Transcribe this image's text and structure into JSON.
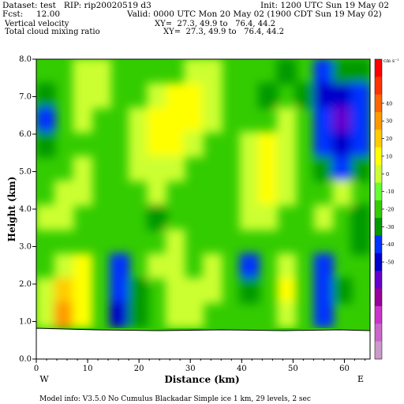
{
  "header": {
    "dataset": "Dataset: test   RIP: rip20020519 d3",
    "init": "Init: 1200 UTC Sun 19 May 02",
    "fcst": "Fcst:     12.00",
    "valid": "Valid: 0000 UTC Mon 20 May 02 (1900 CDT Sun 19 May 02)",
    "field1": "Vertical velocity",
    "xy1": "XY=  27.3, 49.9 to   76.4, 44.2",
    "field2": "Total cloud mixing ratio",
    "xy2": "XY=  27.3, 49.9 to   76.4, 44.2"
  },
  "footer": {
    "model_info": "Model info: V3.5.0 No Cumulus Blackadar  Simple ice     1 km,  29 levels,     2 sec"
  },
  "chart_data": {
    "type": "heatmap",
    "title": "Vertical velocity",
    "overlay": "Total cloud mixing ratio",
    "xlabel": "Distance (km)",
    "ylabel": "Height (km)",
    "xlim": [
      0,
      65
    ],
    "ylim": [
      0,
      8
    ],
    "x_ticks": [
      "0",
      "10",
      "20",
      "30",
      "40",
      "50",
      "60"
    ],
    "y_ticks": [
      "0.0",
      "1.0",
      "2.0",
      "3.0",
      "4.0",
      "5.0",
      "6.0",
      "7.0",
      "8.0"
    ],
    "x_end_labels": {
      "left": "W",
      "right": "E"
    },
    "colorbar": {
      "unit": "cm s⁻¹",
      "tick_labels": [
        "40",
        "30",
        "20",
        "10",
        "0",
        "-10",
        "-20",
        "-30",
        "-40",
        "-50"
      ],
      "colors": [
        "#ff0000",
        "#ff3300",
        "#ff6600",
        "#ff9900",
        "#ffcc00",
        "#ffff00",
        "#ccff33",
        "#66ff33",
        "#33cc00",
        "#009900",
        "#0033ff",
        "#0000cc",
        "#6600cc",
        "#990099",
        "#cc33cc",
        "#cc66cc",
        "#cc99cc"
      ]
    },
    "terrain_height_km": 0.85,
    "values": [
      [
        0,
        0,
        1,
        1,
        0,
        0,
        0,
        0,
        1,
        1,
        0,
        0,
        0,
        -1,
        0,
        -2,
        -1,
        -1
      ],
      [
        -1,
        0,
        1,
        1,
        0,
        0,
        1,
        2,
        2,
        1,
        0,
        0,
        -1,
        0,
        -1,
        -3,
        -3,
        -2
      ],
      [
        -2,
        0,
        1,
        0,
        0,
        1,
        2,
        2,
        2,
        1,
        0,
        0,
        0,
        1,
        0,
        -2,
        -4,
        -2
      ],
      [
        -1,
        0,
        0,
        0,
        0,
        1,
        2,
        2,
        1,
        0,
        0,
        1,
        2,
        1,
        0,
        -2,
        -3,
        -2
      ],
      [
        0,
        0,
        1,
        0,
        0,
        1,
        1,
        1,
        0,
        0,
        0,
        1,
        2,
        1,
        0,
        -1,
        -2,
        -1
      ],
      [
        0,
        1,
        1,
        0,
        0,
        0,
        1,
        0,
        0,
        0,
        0,
        1,
        2,
        1,
        0,
        0,
        1,
        0
      ],
      [
        1,
        1,
        0,
        0,
        0,
        0,
        -1,
        0,
        0,
        0,
        0,
        1,
        1,
        0,
        0,
        1,
        0,
        -1
      ],
      [
        0,
        0,
        0,
        0,
        0,
        0,
        0,
        1,
        0,
        0,
        0,
        0,
        0,
        0,
        0,
        0,
        0,
        -1
      ],
      [
        0,
        1,
        2,
        0,
        -2,
        0,
        1,
        1,
        0,
        1,
        0,
        -2,
        0,
        1,
        0,
        -2,
        0,
        0
      ],
      [
        1,
        3,
        2,
        0,
        -2,
        -1,
        0,
        1,
        1,
        1,
        0,
        -1,
        0,
        2,
        0,
        -2,
        -1,
        0
      ],
      [
        1,
        4,
        2,
        0,
        -3,
        -1,
        0,
        1,
        1,
        0,
        0,
        0,
        0,
        1,
        0,
        -2,
        0,
        0
      ]
    ]
  }
}
